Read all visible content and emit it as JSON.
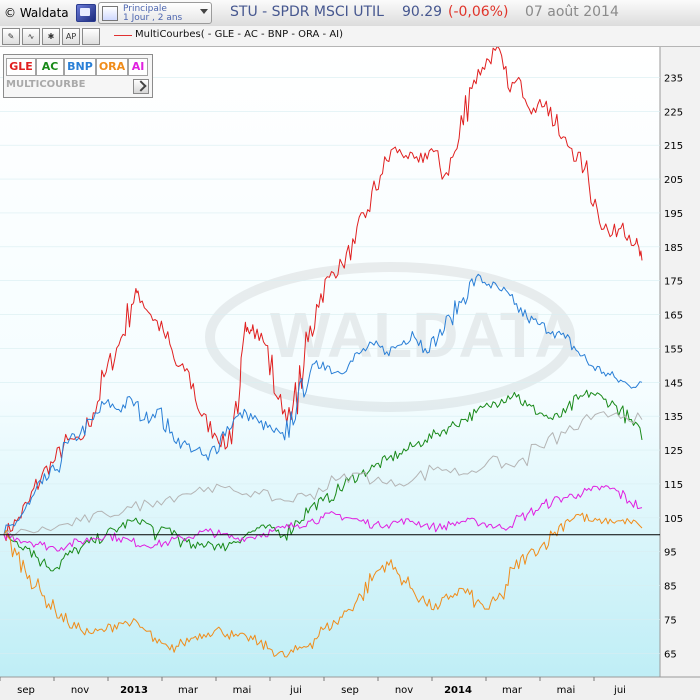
{
  "app": {
    "name": "© Waldata"
  },
  "period": {
    "line1": "Principale",
    "line2": "1 Jour , 2 ans"
  },
  "header": {
    "symbol": "STU - SPDR MSCI UTIL",
    "value": "90.29",
    "change": "(-0,06%)",
    "date": "07 août 2014"
  },
  "toolbar": {
    "legend": "MultiCourbes( - GLE - AC - BNP - ORA - AI)"
  },
  "panel": {
    "symbols": [
      {
        "label": "GLE",
        "color": "#e02020"
      },
      {
        "label": "AC",
        "color": "#1a8a1a"
      },
      {
        "label": "BNP",
        "color": "#2a7fd6"
      },
      {
        "label": "ORA",
        "color": "#f08c1a"
      },
      {
        "label": "AI",
        "color": "#e020e0"
      }
    ],
    "label": "MULTICOURBE"
  },
  "chart_data": {
    "type": "line",
    "x_labels": [
      "sep",
      "nov",
      "2013",
      "mar",
      "mai",
      "jui",
      "sep",
      "nov",
      "2014",
      "mar",
      "mai",
      "jui"
    ],
    "y_ticks": [
      65,
      75,
      85,
      95,
      105,
      115,
      125,
      135,
      145,
      155,
      165,
      175,
      185,
      195,
      205,
      215,
      225,
      235
    ],
    "ylim": [
      58,
      244
    ],
    "reference_value": 100,
    "x_range": [
      0,
      100
    ],
    "series": [
      {
        "name": "GLE",
        "color": "#e02020",
        "points": [
          [
            0,
            100
          ],
          [
            2,
            104
          ],
          [
            4,
            110
          ],
          [
            6,
            118
          ],
          [
            8,
            122
          ],
          [
            10,
            128
          ],
          [
            12,
            128
          ],
          [
            14,
            136
          ],
          [
            16,
            148
          ],
          [
            18,
            156
          ],
          [
            20,
            168
          ],
          [
            21,
            172
          ],
          [
            23,
            165
          ],
          [
            25,
            160
          ],
          [
            27,
            150
          ],
          [
            29,
            148
          ],
          [
            31,
            135
          ],
          [
            33,
            130
          ],
          [
            35,
            126
          ],
          [
            37,
            144
          ],
          [
            38,
            160
          ],
          [
            39,
            162
          ],
          [
            41,
            156
          ],
          [
            43,
            140
          ],
          [
            45,
            134
          ],
          [
            47,
            150
          ],
          [
            49,
            168
          ],
          [
            51,
            176
          ],
          [
            53,
            180
          ],
          [
            55,
            186
          ],
          [
            57,
            196
          ],
          [
            59,
            206
          ],
          [
            61,
            214
          ],
          [
            63,
            212
          ],
          [
            65,
            210
          ],
          [
            67,
            214
          ],
          [
            69,
            206
          ],
          [
            71,
            214
          ],
          [
            73,
            232
          ],
          [
            75,
            238
          ],
          [
            77,
            243
          ],
          [
            79,
            232
          ],
          [
            81,
            234
          ],
          [
            83,
            226
          ],
          [
            85,
            228
          ],
          [
            87,
            218
          ],
          [
            89,
            214
          ],
          [
            91,
            208
          ],
          [
            93,
            196
          ],
          [
            95,
            188
          ],
          [
            97,
            192
          ],
          [
            99,
            186
          ],
          [
            100,
            181
          ]
        ]
      },
      {
        "name": "BNP",
        "color": "#2a7fd6",
        "points": [
          [
            0,
            100
          ],
          [
            2,
            104
          ],
          [
            4,
            109
          ],
          [
            6,
            115
          ],
          [
            8,
            119
          ],
          [
            10,
            127
          ],
          [
            12,
            130
          ],
          [
            14,
            134
          ],
          [
            16,
            139
          ],
          [
            18,
            137
          ],
          [
            20,
            140
          ],
          [
            22,
            134
          ],
          [
            24,
            137
          ],
          [
            26,
            130
          ],
          [
            28,
            127
          ],
          [
            30,
            125
          ],
          [
            32,
            122
          ],
          [
            34,
            129
          ],
          [
            36,
            134
          ],
          [
            38,
            136
          ],
          [
            40,
            133
          ],
          [
            42,
            131
          ],
          [
            44,
            128
          ],
          [
            46,
            140
          ],
          [
            48,
            148
          ],
          [
            50,
            151
          ],
          [
            52,
            148
          ],
          [
            54,
            150
          ],
          [
            56,
            154
          ],
          [
            58,
            156
          ],
          [
            60,
            154
          ],
          [
            62,
            156
          ],
          [
            64,
            160
          ],
          [
            66,
            155
          ],
          [
            68,
            158
          ],
          [
            70,
            164
          ],
          [
            72,
            170
          ],
          [
            74,
            176
          ],
          [
            76,
            174
          ],
          [
            78,
            172
          ],
          [
            80,
            168
          ],
          [
            82,
            164
          ],
          [
            84,
            162
          ],
          [
            86,
            160
          ],
          [
            88,
            158
          ],
          [
            90,
            154
          ],
          [
            92,
            150
          ],
          [
            94,
            148
          ],
          [
            96,
            146
          ],
          [
            98,
            144
          ],
          [
            100,
            145
          ]
        ]
      },
      {
        "name": "AC",
        "color": "#1a8a1a",
        "points": [
          [
            0,
            100
          ],
          [
            2,
            98
          ],
          [
            4,
            96
          ],
          [
            6,
            92
          ],
          [
            8,
            90
          ],
          [
            10,
            94
          ],
          [
            12,
            96
          ],
          [
            14,
            98
          ],
          [
            16,
            100
          ],
          [
            18,
            102
          ],
          [
            20,
            104
          ],
          [
            22,
            104
          ],
          [
            24,
            100
          ],
          [
            26,
            102
          ],
          [
            28,
            98
          ],
          [
            30,
            96
          ],
          [
            32,
            98
          ],
          [
            34,
            96
          ],
          [
            36,
            98
          ],
          [
            38,
            100
          ],
          [
            40,
            102
          ],
          [
            42,
            102
          ],
          [
            44,
            100
          ],
          [
            46,
            104
          ],
          [
            48,
            108
          ],
          [
            50,
            110
          ],
          [
            52,
            112
          ],
          [
            54,
            116
          ],
          [
            56,
            118
          ],
          [
            58,
            120
          ],
          [
            60,
            122
          ],
          [
            62,
            124
          ],
          [
            64,
            126
          ],
          [
            66,
            128
          ],
          [
            68,
            130
          ],
          [
            70,
            132
          ],
          [
            72,
            134
          ],
          [
            74,
            136
          ],
          [
            76,
            138
          ],
          [
            78,
            140
          ],
          [
            80,
            142
          ],
          [
            82,
            138
          ],
          [
            84,
            136
          ],
          [
            86,
            134
          ],
          [
            88,
            136
          ],
          [
            90,
            140
          ],
          [
            92,
            142
          ],
          [
            94,
            140
          ],
          [
            96,
            138
          ],
          [
            98,
            134
          ],
          [
            100,
            128
          ]
        ]
      },
      {
        "name": "AI",
        "color": "#e020e0",
        "points": [
          [
            0,
            100
          ],
          [
            2,
            99
          ],
          [
            4,
            98
          ],
          [
            6,
            97
          ],
          [
            8,
            96
          ],
          [
            10,
            97
          ],
          [
            12,
            98
          ],
          [
            14,
            99
          ],
          [
            16,
            100
          ],
          [
            18,
            99
          ],
          [
            20,
            98
          ],
          [
            22,
            97
          ],
          [
            24,
            97
          ],
          [
            26,
            98
          ],
          [
            28,
            99
          ],
          [
            30,
            100
          ],
          [
            32,
            101
          ],
          [
            34,
            100
          ],
          [
            36,
            99
          ],
          [
            38,
            99
          ],
          [
            40,
            100
          ],
          [
            42,
            101
          ],
          [
            44,
            102
          ],
          [
            46,
            103
          ],
          [
            48,
            104
          ],
          [
            50,
            105
          ],
          [
            52,
            106
          ],
          [
            54,
            105
          ],
          [
            56,
            104
          ],
          [
            58,
            103
          ],
          [
            60,
            103
          ],
          [
            62,
            104
          ],
          [
            64,
            104
          ],
          [
            66,
            103
          ],
          [
            68,
            102
          ],
          [
            70,
            103
          ],
          [
            72,
            104
          ],
          [
            74,
            104
          ],
          [
            76,
            103
          ],
          [
            78,
            102
          ],
          [
            80,
            104
          ],
          [
            82,
            106
          ],
          [
            84,
            108
          ],
          [
            86,
            110
          ],
          [
            88,
            111
          ],
          [
            90,
            112
          ],
          [
            92,
            113
          ],
          [
            94,
            114
          ],
          [
            96,
            113
          ],
          [
            98,
            110
          ],
          [
            100,
            108
          ]
        ]
      },
      {
        "name": "ORA",
        "color": "#f08c1a",
        "points": [
          [
            0,
            100
          ],
          [
            2,
            94
          ],
          [
            4,
            88
          ],
          [
            6,
            82
          ],
          [
            8,
            78
          ],
          [
            10,
            74
          ],
          [
            12,
            72
          ],
          [
            14,
            71
          ],
          [
            16,
            72
          ],
          [
            18,
            74
          ],
          [
            20,
            74
          ],
          [
            22,
            72
          ],
          [
            24,
            68
          ],
          [
            26,
            66
          ],
          [
            28,
            68
          ],
          [
            30,
            70
          ],
          [
            32,
            71
          ],
          [
            34,
            72
          ],
          [
            36,
            70
          ],
          [
            38,
            70
          ],
          [
            40,
            68
          ],
          [
            42,
            66
          ],
          [
            44,
            64
          ],
          [
            46,
            66
          ],
          [
            48,
            68
          ],
          [
            50,
            72
          ],
          [
            52,
            74
          ],
          [
            54,
            78
          ],
          [
            56,
            82
          ],
          [
            58,
            88
          ],
          [
            60,
            92
          ],
          [
            62,
            88
          ],
          [
            64,
            84
          ],
          [
            66,
            80
          ],
          [
            68,
            78
          ],
          [
            70,
            82
          ],
          [
            72,
            84
          ],
          [
            74,
            80
          ],
          [
            76,
            78
          ],
          [
            78,
            82
          ],
          [
            80,
            90
          ],
          [
            82,
            94
          ],
          [
            84,
            96
          ],
          [
            86,
            100
          ],
          [
            88,
            104
          ],
          [
            90,
            106
          ],
          [
            92,
            104
          ],
          [
            94,
            104
          ],
          [
            96,
            104
          ],
          [
            98,
            104
          ],
          [
            100,
            102
          ]
        ]
      },
      {
        "name": "",
        "color": "#b4b4b4",
        "points": [
          [
            0,
            100
          ],
          [
            4,
            101
          ],
          [
            8,
            102
          ],
          [
            12,
            104
          ],
          [
            16,
            106
          ],
          [
            20,
            108
          ],
          [
            24,
            110
          ],
          [
            28,
            112
          ],
          [
            32,
            114
          ],
          [
            36,
            113
          ],
          [
            40,
            112
          ],
          [
            44,
            110
          ],
          [
            48,
            112
          ],
          [
            52,
            116
          ],
          [
            56,
            118
          ],
          [
            60,
            115
          ],
          [
            64,
            116
          ],
          [
            68,
            120
          ],
          [
            72,
            118
          ],
          [
            76,
            122
          ],
          [
            80,
            120
          ],
          [
            84,
            126
          ],
          [
            88,
            130
          ],
          [
            92,
            134
          ],
          [
            96,
            136
          ],
          [
            100,
            134
          ]
        ]
      }
    ]
  }
}
